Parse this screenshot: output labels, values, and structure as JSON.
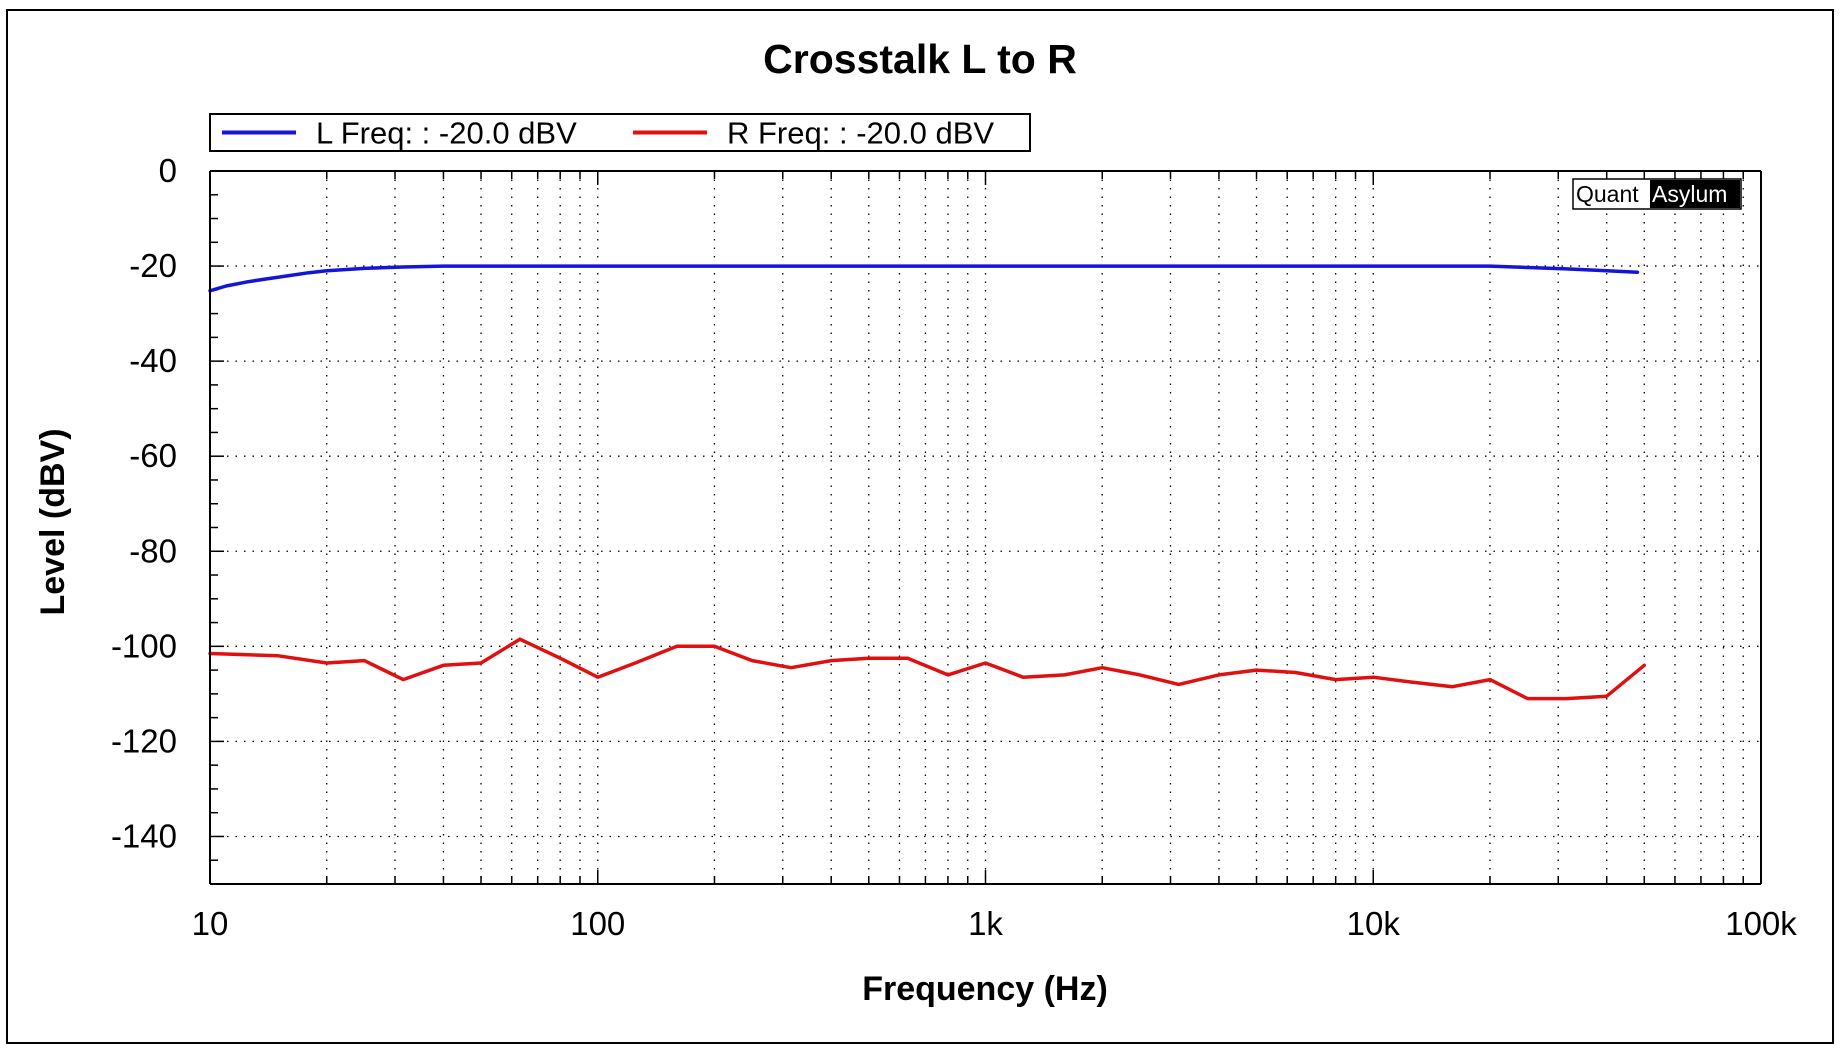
{
  "watermark": {
    "part1": "Quant",
    "part2": "Asylum"
  },
  "chart_data": {
    "type": "line",
    "title": "Crosstalk L to R",
    "xlabel": "Frequency (Hz)",
    "ylabel": "Level (dBV)",
    "x_scale": "log",
    "xlim": [
      10,
      100000
    ],
    "ylim": [
      -150,
      0
    ],
    "x_ticks": [
      {
        "value": 10,
        "label": "10"
      },
      {
        "value": 100,
        "label": "100"
      },
      {
        "value": 1000,
        "label": "1k"
      },
      {
        "value": 10000,
        "label": "10k"
      },
      {
        "value": 100000,
        "label": "100k"
      }
    ],
    "y_ticks": [
      {
        "value": 0,
        "label": "0"
      },
      {
        "value": -20,
        "label": "-20"
      },
      {
        "value": -40,
        "label": "-40"
      },
      {
        "value": -60,
        "label": "-60"
      },
      {
        "value": -80,
        "label": "-80"
      },
      {
        "value": -100,
        "label": "-100"
      },
      {
        "value": -120,
        "label": "-120"
      },
      {
        "value": -140,
        "label": "-140"
      }
    ],
    "grid": true,
    "legend_position": "top-left",
    "series": [
      {
        "name": "L Freq: : -20.0 dBV",
        "color": "#1515d6",
        "x": [
          10,
          11,
          12.5,
          14,
          16,
          18,
          20,
          25,
          31.5,
          40,
          50,
          100,
          1000,
          10000,
          20000,
          25000,
          31500,
          40000,
          48000
        ],
        "y": [
          -25.2,
          -24.2,
          -23.3,
          -22.7,
          -22.0,
          -21.4,
          -21.0,
          -20.5,
          -20.2,
          -20.0,
          -20.0,
          -20.0,
          -20.0,
          -20.0,
          -20.0,
          -20.3,
          -20.6,
          -21.0,
          -21.3
        ]
      },
      {
        "name": "R Freq: : -20.0 dBV",
        "color": "#e01010",
        "x": [
          10,
          15,
          20,
          25,
          31.5,
          40,
          50,
          63,
          80,
          100,
          125,
          160,
          200,
          250,
          315,
          400,
          500,
          630,
          800,
          1000,
          1250,
          1600,
          2000,
          2500,
          3150,
          4000,
          5000,
          6300,
          8000,
          10000,
          12500,
          16000,
          20000,
          25000,
          31500,
          40000,
          50000
        ],
        "y": [
          -101.5,
          -102,
          -103.5,
          -103,
          -107,
          -104,
          -103.5,
          -98.5,
          -102.5,
          -106.5,
          -103.5,
          -100,
          -100,
          -103,
          -104.5,
          -103,
          -102.5,
          -102.5,
          -106,
          -103.5,
          -106.5,
          -106,
          -104.5,
          -106,
          -108,
          -106,
          -105,
          -105.5,
          -107,
          -106.5,
          -107.5,
          -108.5,
          -107,
          -111,
          -111,
          -110.5,
          -104
        ]
      }
    ]
  }
}
